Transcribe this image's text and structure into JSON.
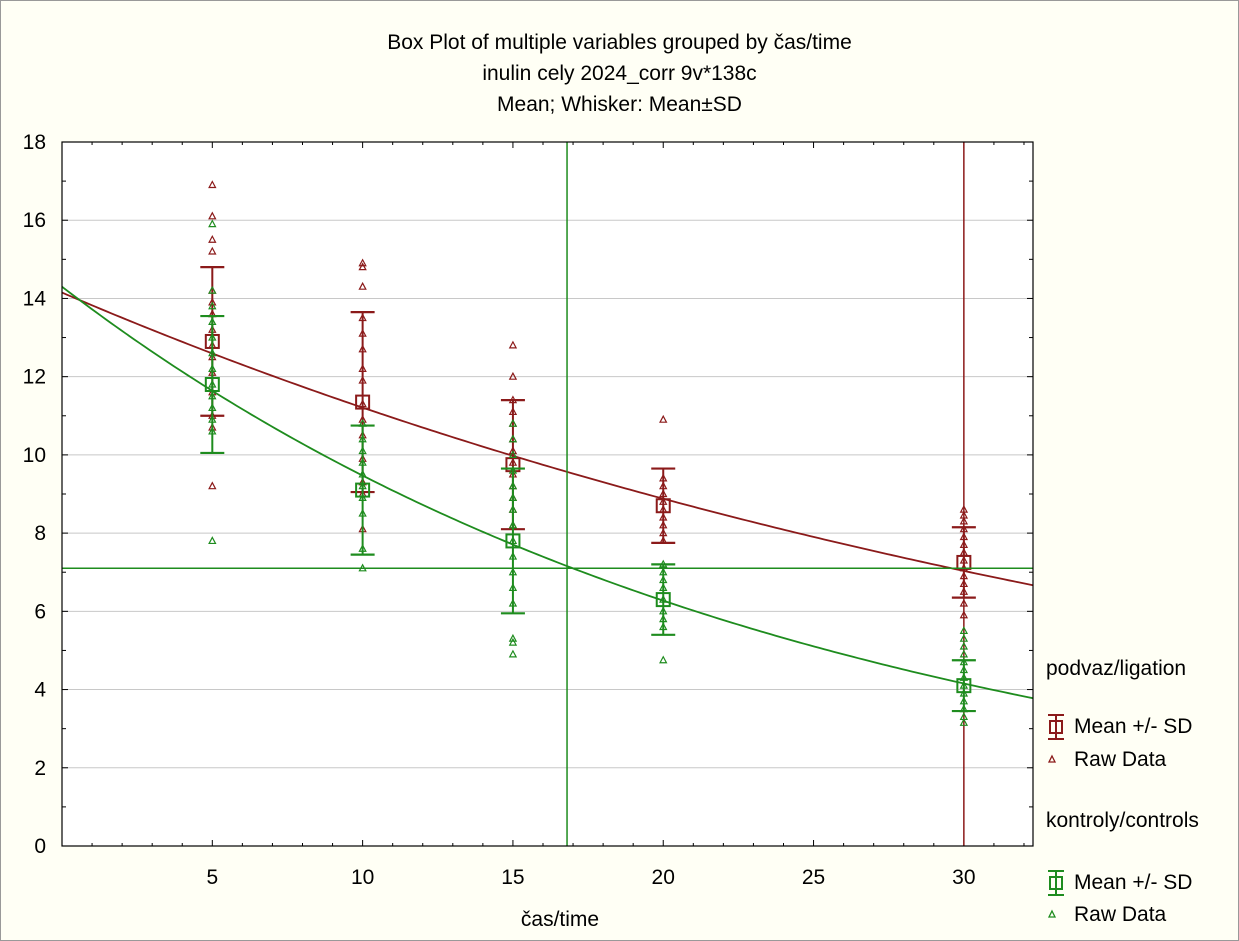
{
  "chart_data": {
    "type": "box",
    "title": "Box Plot of multiple variables grouped by  čas/time",
    "subtitle_lines": [
      "inulin cely 2024_corr 9v*138c",
      "Mean; Whisker: Mean±SD"
    ],
    "xlabel": "čas/time",
    "ylabel": "",
    "xlim": [
      0,
      32.3
    ],
    "ylim": [
      0,
      18
    ],
    "x_ticks": [
      5,
      10,
      15,
      20,
      25,
      30
    ],
    "y_ticks": [
      0,
      2,
      4,
      6,
      8,
      10,
      12,
      14,
      16,
      18
    ],
    "grid": "horizontal",
    "legend_position": "right",
    "series": [
      {
        "name": "podvaz/ligation",
        "color": "#8b1a1a",
        "x": [
          5,
          10,
          15,
          20,
          30
        ],
        "mean": [
          12.9,
          11.35,
          9.75,
          8.7,
          7.25
        ],
        "sd": [
          1.9,
          2.3,
          1.65,
          0.95,
          0.9
        ],
        "raw": [
          [
            5,
            16.9
          ],
          [
            5,
            16.1
          ],
          [
            5,
            15.5
          ],
          [
            5,
            15.2
          ],
          [
            5,
            14.2
          ],
          [
            5,
            13.9
          ],
          [
            5,
            13.6
          ],
          [
            5,
            13.2
          ],
          [
            5,
            12.8
          ],
          [
            5,
            12.5
          ],
          [
            5,
            12.1
          ],
          [
            5,
            11.6
          ],
          [
            5,
            11.0
          ],
          [
            5,
            10.7
          ],
          [
            5,
            9.2
          ],
          [
            10,
            14.9
          ],
          [
            10,
            14.8
          ],
          [
            10,
            14.3
          ],
          [
            10,
            13.5
          ],
          [
            10,
            13.1
          ],
          [
            10,
            12.7
          ],
          [
            10,
            12.2
          ],
          [
            10,
            11.9
          ],
          [
            10,
            11.3
          ],
          [
            10,
            10.9
          ],
          [
            10,
            10.5
          ],
          [
            10,
            9.9
          ],
          [
            10,
            9.3
          ],
          [
            10,
            9.0
          ],
          [
            10,
            8.1
          ],
          [
            15,
            12.8
          ],
          [
            15,
            12.0
          ],
          [
            15,
            11.4
          ],
          [
            15,
            11.1
          ],
          [
            15,
            10.8
          ],
          [
            15,
            10.4
          ],
          [
            15,
            10.1
          ],
          [
            15,
            9.8
          ],
          [
            15,
            9.5
          ],
          [
            15,
            9.2
          ],
          [
            15,
            8.9
          ],
          [
            15,
            8.6
          ],
          [
            15,
            8.2
          ],
          [
            20,
            10.9
          ],
          [
            20,
            9.4
          ],
          [
            20,
            9.2
          ],
          [
            20,
            9.0
          ],
          [
            20,
            8.8
          ],
          [
            20,
            8.6
          ],
          [
            20,
            8.4
          ],
          [
            20,
            8.2
          ],
          [
            20,
            8.0
          ],
          [
            20,
            7.8
          ],
          [
            30,
            8.6
          ],
          [
            30,
            8.45
          ],
          [
            30,
            8.3
          ],
          [
            30,
            8.1
          ],
          [
            30,
            7.9
          ],
          [
            30,
            7.7
          ],
          [
            30,
            7.5
          ],
          [
            30,
            7.3
          ],
          [
            30,
            7.1
          ],
          [
            30,
            6.9
          ],
          [
            30,
            6.7
          ],
          [
            30,
            6.5
          ],
          [
            30,
            6.2
          ],
          [
            30,
            5.9
          ]
        ],
        "fit": {
          "a": 14.15,
          "b": 0.0233
        },
        "crosshair": {
          "x": 30,
          "y": 7.1
        }
      },
      {
        "name": "kontroly/controls",
        "color": "#1e8c1e",
        "x": [
          5,
          10,
          15,
          20,
          30
        ],
        "mean": [
          11.8,
          9.1,
          7.8,
          6.3,
          4.1
        ],
        "sd": [
          1.75,
          1.65,
          1.85,
          0.9,
          0.65
        ],
        "raw": [
          [
            5,
            15.9
          ],
          [
            5,
            14.2
          ],
          [
            5,
            13.8
          ],
          [
            5,
            13.4
          ],
          [
            5,
            13.0
          ],
          [
            5,
            12.6
          ],
          [
            5,
            12.2
          ],
          [
            5,
            11.8
          ],
          [
            5,
            11.5
          ],
          [
            5,
            11.2
          ],
          [
            5,
            10.9
          ],
          [
            5,
            10.6
          ],
          [
            5,
            7.8
          ],
          [
            10,
            10.8
          ],
          [
            10,
            10.4
          ],
          [
            10,
            10.1
          ],
          [
            10,
            9.8
          ],
          [
            10,
            9.5
          ],
          [
            10,
            9.2
          ],
          [
            10,
            8.9
          ],
          [
            10,
            8.5
          ],
          [
            10,
            7.6
          ],
          [
            10,
            7.1
          ],
          [
            15,
            10.8
          ],
          [
            15,
            10.4
          ],
          [
            15,
            10.0
          ],
          [
            15,
            9.6
          ],
          [
            15,
            9.2
          ],
          [
            15,
            8.9
          ],
          [
            15,
            8.6
          ],
          [
            15,
            8.2
          ],
          [
            15,
            7.8
          ],
          [
            15,
            7.4
          ],
          [
            15,
            7.0
          ],
          [
            15,
            6.6
          ],
          [
            15,
            6.2
          ],
          [
            15,
            5.3
          ],
          [
            15,
            5.2
          ],
          [
            15,
            4.9
          ],
          [
            20,
            7.2
          ],
          [
            20,
            7.0
          ],
          [
            20,
            6.8
          ],
          [
            20,
            6.6
          ],
          [
            20,
            6.3
          ],
          [
            20,
            6.0
          ],
          [
            20,
            5.8
          ],
          [
            20,
            5.6
          ],
          [
            20,
            4.75
          ],
          [
            30,
            5.5
          ],
          [
            30,
            5.3
          ],
          [
            30,
            5.1
          ],
          [
            30,
            4.9
          ],
          [
            30,
            4.7
          ],
          [
            30,
            4.5
          ],
          [
            30,
            4.3
          ],
          [
            30,
            4.1
          ],
          [
            30,
            3.9
          ],
          [
            30,
            3.7
          ],
          [
            30,
            3.5
          ],
          [
            30,
            3.3
          ],
          [
            30,
            3.15
          ]
        ],
        "fit": {
          "a": 14.3,
          "b": 0.0412
        },
        "crosshair": {
          "x": 16.8,
          "y": 7.1
        }
      }
    ],
    "legend": {
      "mean_sd_label": "Mean +/- SD",
      "raw_label": "Raw Data"
    }
  }
}
